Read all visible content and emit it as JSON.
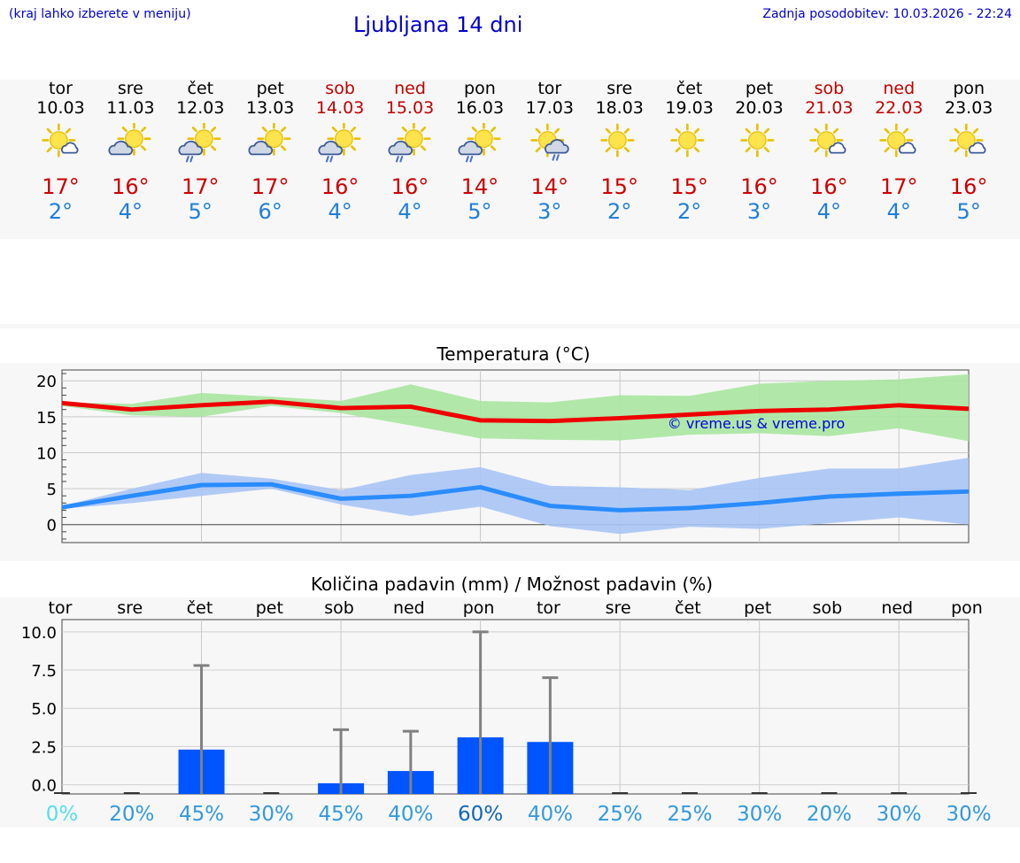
{
  "header": {
    "hint": "(kraj lahko izberete v meniju)",
    "title": "Ljubljana 14 dni",
    "updated": "Zadnja posodobitev: 10.03.2026 - 22:24"
  },
  "days": [
    {
      "name": "tor",
      "date": "10.03",
      "weekend": false,
      "icon": "sun-cloud-icon",
      "tmax": "17°",
      "tmin": "2°"
    },
    {
      "name": "sre",
      "date": "11.03",
      "weekend": false,
      "icon": "cloud-sun-icon",
      "tmax": "16°",
      "tmin": "4°"
    },
    {
      "name": "čet",
      "date": "12.03",
      "weekend": false,
      "icon": "cloud-sun-rain-icon",
      "tmax": "17°",
      "tmin": "5°"
    },
    {
      "name": "pet",
      "date": "13.03",
      "weekend": false,
      "icon": "cloud-sun-icon",
      "tmax": "17°",
      "tmin": "6°"
    },
    {
      "name": "sob",
      "date": "14.03",
      "weekend": true,
      "icon": "cloud-sun-rain-icon",
      "tmax": "16°",
      "tmin": "4°"
    },
    {
      "name": "ned",
      "date": "15.03",
      "weekend": true,
      "icon": "cloud-sun-rain-icon",
      "tmax": "16°",
      "tmin": "4°"
    },
    {
      "name": "pon",
      "date": "16.03",
      "weekend": false,
      "icon": "cloud-sun-rain-icon",
      "tmax": "14°",
      "tmin": "5°"
    },
    {
      "name": "tor",
      "date": "17.03",
      "weekend": false,
      "icon": "sun-cloud-rain-icon",
      "tmax": "14°",
      "tmin": "3°"
    },
    {
      "name": "sre",
      "date": "18.03",
      "weekend": false,
      "icon": "sun-icon",
      "tmax": "15°",
      "tmin": "2°"
    },
    {
      "name": "čet",
      "date": "19.03",
      "weekend": false,
      "icon": "sun-icon",
      "tmax": "15°",
      "tmin": "2°"
    },
    {
      "name": "pet",
      "date": "20.03",
      "weekend": false,
      "icon": "sun-icon",
      "tmax": "16°",
      "tmin": "3°"
    },
    {
      "name": "sob",
      "date": "21.03",
      "weekend": true,
      "icon": "sun-cloud-icon",
      "tmax": "16°",
      "tmin": "4°"
    },
    {
      "name": "ned",
      "date": "22.03",
      "weekend": true,
      "icon": "sun-cloud-icon",
      "tmax": "17°",
      "tmin": "4°"
    },
    {
      "name": "pon",
      "date": "23.03",
      "weekend": false,
      "icon": "sun-cloud-icon",
      "tmax": "16°",
      "tmin": "5°"
    }
  ],
  "colors": {
    "max": "#cc0000",
    "min": "#1e7fd8",
    "maxLine": "#ee0000",
    "maxBand": "#a8e6a0",
    "minLine": "#2a8cff",
    "minBand": "#a8c4f4",
    "bar": "#0055ff",
    "whisker": "#808080"
  },
  "chart_data": [
    {
      "type": "line",
      "title": "Temperatura (°C)",
      "watermark": "© vreme.us & vreme.pro",
      "ylim": [
        -2.5,
        21.5
      ],
      "yticks": [
        0,
        5,
        10,
        15,
        20
      ],
      "x": [
        0,
        1,
        2,
        3,
        4,
        5,
        6,
        7,
        8,
        9,
        10,
        11,
        12,
        13
      ],
      "series": [
        {
          "name": "max",
          "values": [
            16.9,
            16.0,
            16.6,
            17.1,
            16.2,
            16.4,
            14.5,
            14.4,
            14.8,
            15.3,
            15.8,
            16.0,
            16.6,
            16.1
          ],
          "band_low": [
            16.5,
            15.2,
            15.0,
            16.5,
            15.5,
            13.8,
            12.0,
            11.8,
            11.7,
            12.5,
            12.7,
            12.3,
            13.4,
            11.6
          ],
          "band_high": [
            17.0,
            16.8,
            18.3,
            17.8,
            17.2,
            19.5,
            17.2,
            17.0,
            18.0,
            17.9,
            19.6,
            20.0,
            20.2,
            20.9
          ]
        },
        {
          "name": "min",
          "values": [
            2.4,
            4.0,
            5.5,
            5.6,
            3.6,
            4.0,
            5.2,
            2.6,
            2.0,
            2.3,
            3.0,
            3.9,
            4.3,
            4.6
          ],
          "band_low": [
            2.2,
            3.0,
            4.0,
            5.0,
            2.8,
            1.2,
            2.5,
            -0.2,
            -1.3,
            -0.3,
            -0.6,
            0.2,
            1.0,
            0.0
          ],
          "band_high": [
            2.6,
            5.0,
            7.2,
            6.4,
            4.8,
            6.9,
            8.0,
            5.4,
            5.2,
            4.8,
            6.5,
            7.8,
            7.8,
            9.3
          ]
        }
      ]
    },
    {
      "type": "bar",
      "title": "Količina padavin (mm) / Možnost padavin (%)",
      "categories": [
        "tor",
        "sre",
        "čet",
        "pet",
        "sob",
        "ned",
        "pon",
        "tor",
        "sre",
        "čet",
        "pet",
        "sob",
        "ned",
        "pon"
      ],
      "values": [
        0,
        0,
        2.3,
        0,
        0.1,
        0.9,
        3.1,
        2.8,
        0,
        0,
        0,
        0,
        0,
        0
      ],
      "whisker_high": [
        0,
        0,
        7.8,
        0,
        3.6,
        3.5,
        10.0,
        7.0,
        0,
        0,
        0,
        0,
        0,
        0
      ],
      "probability": [
        "0%",
        "20%",
        "45%",
        "30%",
        "45%",
        "40%",
        "60%",
        "40%",
        "25%",
        "25%",
        "30%",
        "20%",
        "30%",
        "30%"
      ],
      "probability_colors": [
        "#55ddee",
        "#3399dd",
        "#3399dd",
        "#3399dd",
        "#3399dd",
        "#3399dd",
        "#1166bb",
        "#3399dd",
        "#3399dd",
        "#3399dd",
        "#3399dd",
        "#3399dd",
        "#3399dd",
        "#3399dd"
      ],
      "ylim": [
        -0.6,
        10.8
      ],
      "yticks": [
        0,
        2.5,
        5,
        7.5,
        10
      ],
      "ytick_labels": [
        "0.0",
        "2.5",
        "5.0",
        "7.5",
        "10.0"
      ]
    }
  ]
}
